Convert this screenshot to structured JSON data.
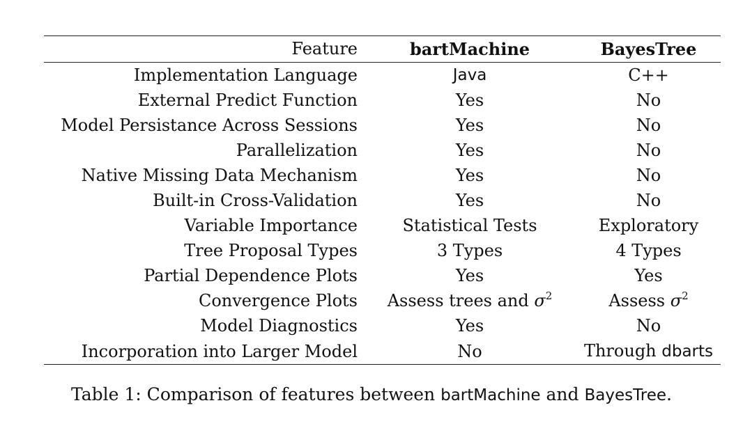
{
  "table": {
    "headers": {
      "feature": "Feature",
      "col_a": "bartMachine",
      "col_b": "BayesTree"
    },
    "rows": [
      {
        "feature": "Implementation Language",
        "a": "Java",
        "b": "C++"
      },
      {
        "feature": "External Predict Function",
        "a": "Yes",
        "b": "No"
      },
      {
        "feature": "Model Persistance Across Sessions",
        "a": "Yes",
        "b": "No"
      },
      {
        "feature": "Parallelization",
        "a": "Yes",
        "b": "No"
      },
      {
        "feature": "Native Missing Data Mechanism",
        "a": "Yes",
        "b": "No"
      },
      {
        "feature": "Built-in Cross-Validation",
        "a": "Yes",
        "b": "No"
      },
      {
        "feature": "Variable Importance",
        "a": "Statistical Tests",
        "b": "Exploratory"
      },
      {
        "feature": "Tree Proposal Types",
        "a": "3 Types",
        "b": "4 Types"
      },
      {
        "feature": "Partial Dependence Plots",
        "a": "Yes",
        "b": "Yes"
      },
      {
        "feature": "Convergence Plots",
        "a_prefix": "Assess trees and ",
        "a_sym": "σ",
        "a_exp": "2",
        "b_prefix": "Assess ",
        "b_sym": "σ",
        "b_exp": "2"
      },
      {
        "feature": "Model Diagnostics",
        "a": "Yes",
        "b": "No"
      },
      {
        "feature": "Incorporation into Larger Model",
        "a": "No",
        "b_prefix": "Through ",
        "b_code": "dbarts"
      }
    ]
  },
  "caption": {
    "prefix": "Table 1: Comparison of features between ",
    "name_a": "bartMachine",
    "middle": " and ",
    "name_b": "BayesTree",
    "suffix": "."
  }
}
